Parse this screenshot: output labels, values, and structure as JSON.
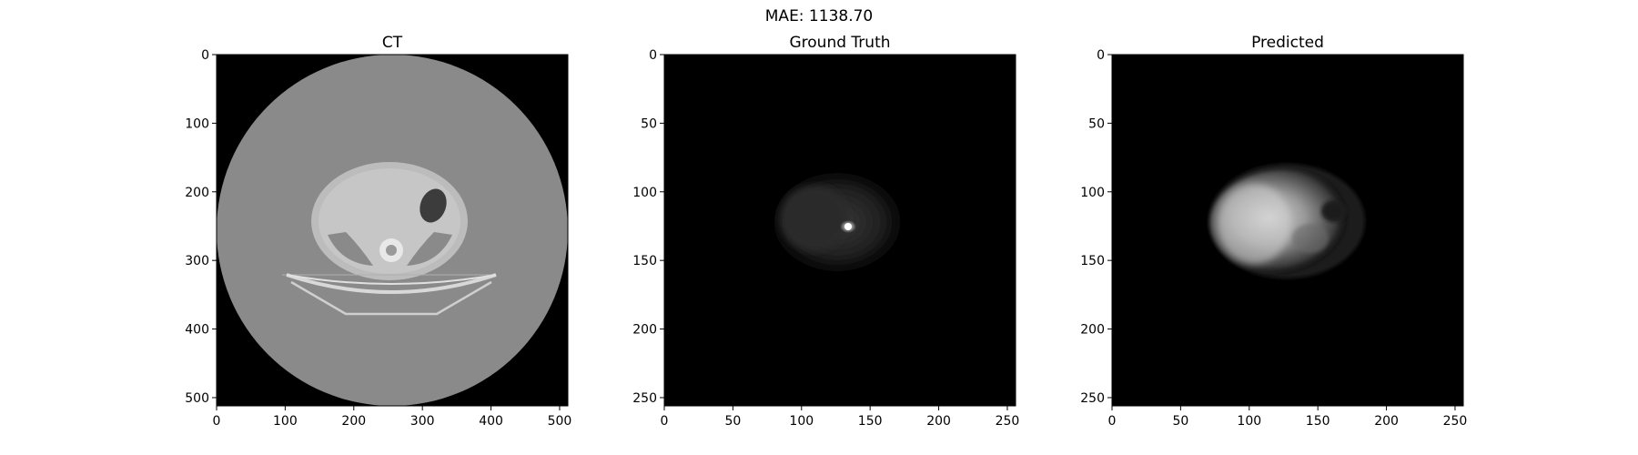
{
  "figure": {
    "suptitle": "MAE: 1138.70",
    "colors": {
      "background": "#ffffff",
      "image_bg": "#000000",
      "ct_body": "#8a8a8a"
    }
  },
  "panels": [
    {
      "id": "ct",
      "title": "CT",
      "x_ticks": [
        0,
        100,
        200,
        300,
        400,
        500
      ],
      "y_ticks": [
        0,
        100,
        200,
        300,
        400,
        500
      ],
      "extent": [
        0,
        512
      ]
    },
    {
      "id": "gt",
      "title": "Ground Truth",
      "x_ticks": [
        0,
        50,
        100,
        150,
        200,
        250
      ],
      "y_ticks": [
        0,
        50,
        100,
        150,
        200,
        250
      ],
      "extent": [
        0,
        256
      ]
    },
    {
      "id": "pred",
      "title": "Predicted",
      "x_ticks": [
        0,
        50,
        100,
        150,
        200,
        250
      ],
      "y_ticks": [
        0,
        50,
        100,
        150,
        200,
        250
      ],
      "extent": [
        0,
        256
      ]
    }
  ]
}
